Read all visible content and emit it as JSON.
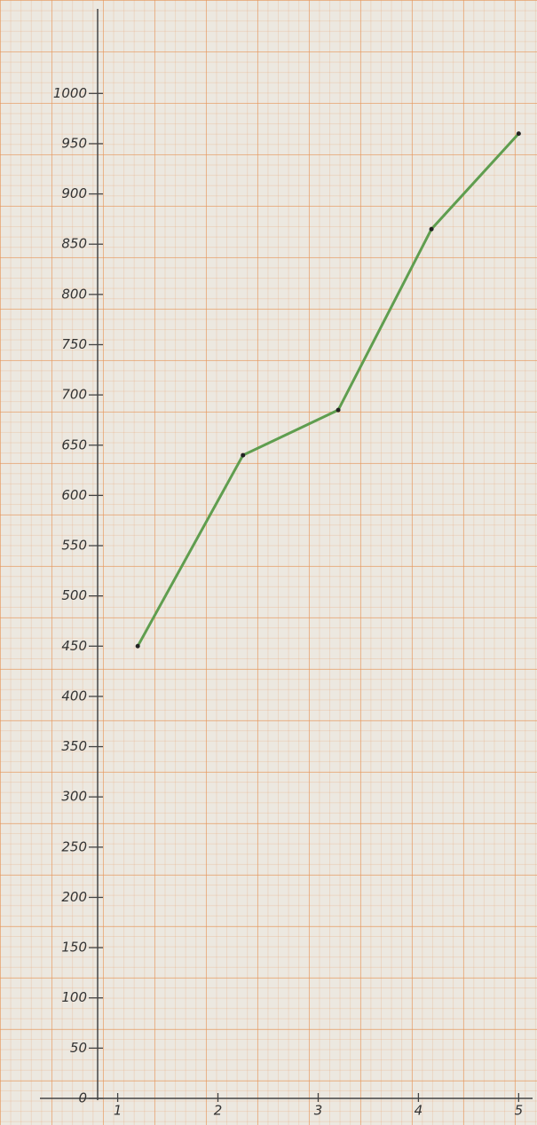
{
  "chart_data": {
    "type": "line",
    "x": [
      1.2,
      2.25,
      3.2,
      4.13,
      5.0
    ],
    "values": [
      450,
      640,
      685,
      865,
      960
    ],
    "color": "#5f9e4f",
    "xlim": [
      0.8,
      5.05
    ],
    "xticks": [
      1,
      2,
      3,
      4,
      5
    ],
    "ylim": [
      0,
      1040
    ],
    "yticks": [
      0,
      50,
      100,
      150,
      200,
      250,
      300,
      350,
      400,
      450,
      500,
      550,
      600,
      650,
      700,
      750,
      800,
      850,
      900,
      950,
      1000
    ],
    "grid": true
  }
}
